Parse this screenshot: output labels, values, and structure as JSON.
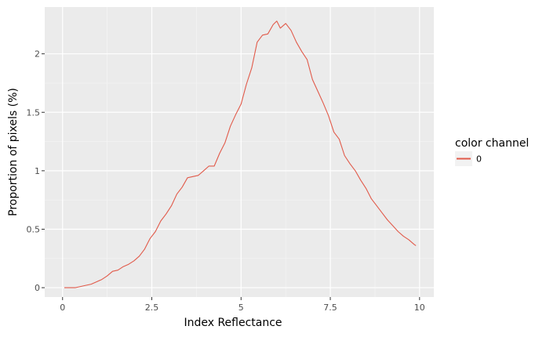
{
  "chart_data": {
    "type": "line",
    "title": "",
    "xlabel": "Index Reflectance",
    "ylabel": "Proportion of pixels (%)",
    "xlim": [
      -0.5,
      10.4
    ],
    "ylim": [
      -0.08,
      2.4
    ],
    "x_ticks": [
      0,
      2.5,
      5,
      7.5,
      10
    ],
    "x_tick_labels": [
      "0",
      "2.5",
      "5",
      "7.5",
      "10"
    ],
    "y_ticks": [
      0,
      0.5,
      1,
      1.5,
      2
    ],
    "y_tick_labels": [
      "0",
      "0.5",
      "1",
      "1.5",
      "2"
    ],
    "grid": true,
    "legend": {
      "title": "color channel",
      "position": "right",
      "entries": [
        "0"
      ]
    },
    "series": [
      {
        "name": "0",
        "color": "#e15a4a",
        "x": [
          0.05,
          0.2,
          0.35,
          0.5,
          0.65,
          0.8,
          0.95,
          1.1,
          1.25,
          1.4,
          1.55,
          1.7,
          1.85,
          2.0,
          2.15,
          2.3,
          2.45,
          2.6,
          2.75,
          2.9,
          3.05,
          3.2,
          3.35,
          3.5,
          3.65,
          3.8,
          3.95,
          4.1,
          4.25,
          4.4,
          4.55,
          4.7,
          4.85,
          5.0,
          5.15,
          5.3,
          5.45,
          5.6,
          5.75,
          5.9,
          6.0,
          6.1,
          6.25,
          6.4,
          6.55,
          6.7,
          6.85,
          7.0,
          7.15,
          7.3,
          7.45,
          7.6,
          7.75,
          7.9,
          8.05,
          8.2,
          8.35,
          8.5,
          8.65,
          8.8,
          8.95,
          9.1,
          9.25,
          9.4,
          9.55,
          9.7,
          9.85,
          9.9
        ],
        "values": [
          0.0,
          0.0,
          0.0,
          0.01,
          0.02,
          0.03,
          0.05,
          0.07,
          0.1,
          0.14,
          0.15,
          0.18,
          0.2,
          0.23,
          0.27,
          0.33,
          0.42,
          0.48,
          0.57,
          0.63,
          0.7,
          0.8,
          0.86,
          0.94,
          0.95,
          0.96,
          1.0,
          1.04,
          1.04,
          1.15,
          1.24,
          1.38,
          1.48,
          1.57,
          1.74,
          1.88,
          2.1,
          2.16,
          2.17,
          2.25,
          2.28,
          2.22,
          2.26,
          2.2,
          2.1,
          2.02,
          1.95,
          1.78,
          1.68,
          1.58,
          1.47,
          1.33,
          1.27,
          1.13,
          1.06,
          1.0,
          0.92,
          0.85,
          0.76,
          0.7,
          0.64,
          0.58,
          0.53,
          0.48,
          0.44,
          0.41,
          0.37,
          0.36
        ]
      }
    ]
  }
}
